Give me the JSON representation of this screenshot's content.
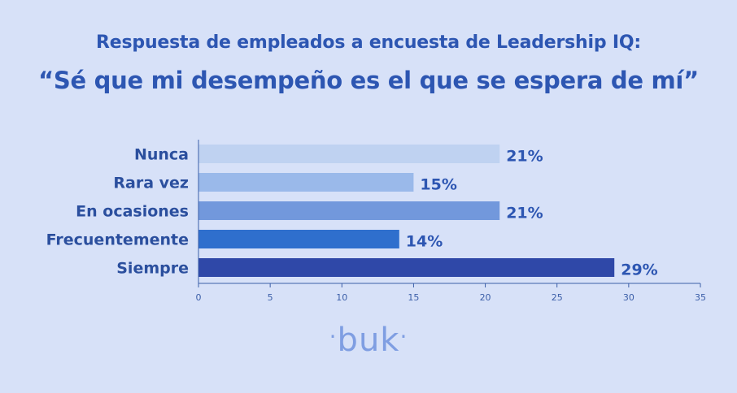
{
  "header": {
    "title": "Respuesta de empleados a encuesta de Leadership IQ:",
    "subtitle": "“Sé que mi desempeño es el que se espera de mí”"
  },
  "chart_data": {
    "type": "bar",
    "orientation": "horizontal",
    "title": "Respuesta de empleados a encuesta de Leadership IQ:",
    "subtitle": "“Sé que mi desempeño es el que se espera de mí”",
    "categories": [
      "Nunca",
      "Rara vez",
      "En ocasiones",
      "Frecuentemente",
      "Siempre"
    ],
    "values": [
      21,
      15,
      21,
      14,
      29
    ],
    "value_labels": [
      "21%",
      "15%",
      "21%",
      "14%",
      "29%"
    ],
    "bar_colors": [
      "#bfd2f1",
      "#9ab9ea",
      "#7298dc",
      "#2f6fcd",
      "#2f48a8"
    ],
    "xlim": [
      0,
      35
    ],
    "x_ticks": [
      "0",
      "5",
      "10",
      "15",
      "20",
      "25",
      "30",
      "35"
    ],
    "grid": false,
    "legend": "none"
  },
  "brand": {
    "logo_text": "buk",
    "logo_color": "#7f9ee2"
  }
}
